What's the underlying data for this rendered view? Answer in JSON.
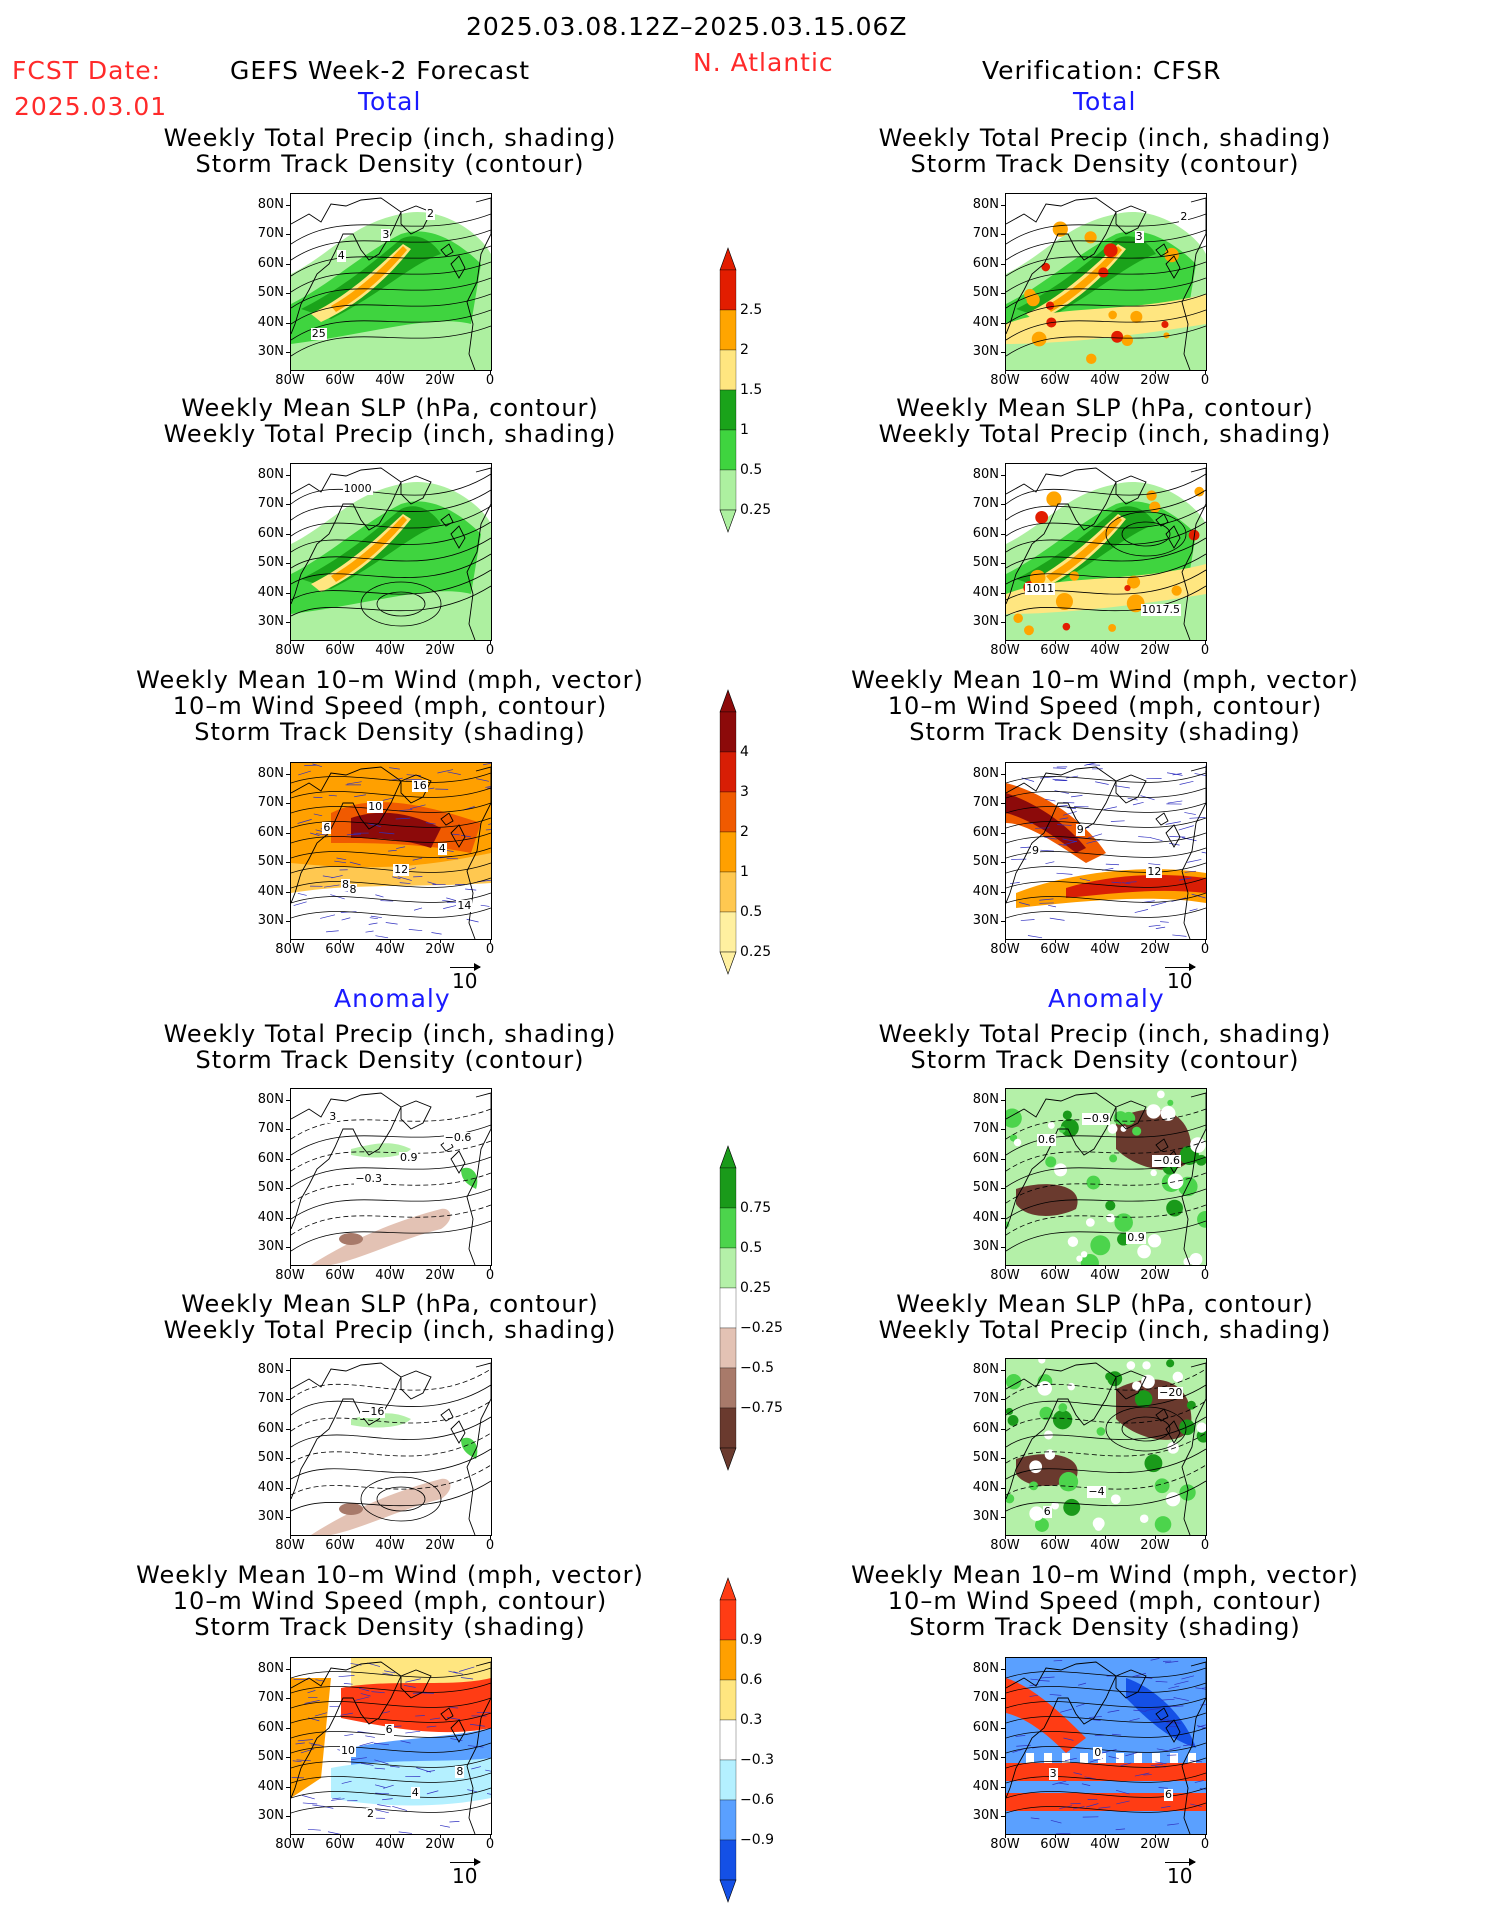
{
  "header": {
    "period": "2025.03.08.12Z–2025.03.15.06Z",
    "fcst_label": "FCST Date:",
    "fcst_date": "2025.03.01",
    "model": "GEFS Week-2 Forecast",
    "region": "N. Atlantic",
    "verification": "Verification: CFSR",
    "total_label": "Total",
    "anomaly_label": "Anomaly"
  },
  "titles": {
    "precip_storm": [
      "Weekly Total Precip (inch, shading)",
      "Storm Track Density (contour)"
    ],
    "slp_precip": [
      "Weekly Mean SLP (hPa, contour)",
      "Weekly Total Precip (inch, shading)"
    ],
    "wind": [
      "Weekly Mean 10–m Wind (mph, vector)",
      "10–m Wind Speed (mph, contour)",
      "Storm Track Density (shading)"
    ]
  },
  "axes": {
    "lat": [
      "80N",
      "70N",
      "60N",
      "50N",
      "40N",
      "30N"
    ],
    "lon": [
      "80W",
      "60W",
      "40W",
      "20W",
      "0"
    ]
  },
  "ref_vector_label": "10",
  "colorbars": {
    "precip_total": {
      "labels": [
        "2.5",
        "2",
        "1.5",
        "1",
        "0.5",
        "0.25"
      ],
      "colors": [
        "#e21d00",
        "#ffa500",
        "#ffe680",
        "#1aa31a",
        "#3fd43f",
        "#adf0a0"
      ]
    },
    "storm_total": {
      "labels": [
        "4",
        "3",
        "2",
        "1",
        "0.5",
        "0.25"
      ],
      "colors": [
        "#8c0a0a",
        "#d81e05",
        "#f05a00",
        "#ffa000",
        "#ffc850",
        "#fff0a0"
      ]
    },
    "precip_anom": {
      "labels": [
        "0.75",
        "0.5",
        "0.25",
        "−0.25",
        "−0.5",
        "−0.75"
      ],
      "colors": [
        "#1a9a1a",
        "#4cd44c",
        "#b4f0a8",
        "#ffffff",
        "#e3c2b4",
        "#a87a6a",
        "#6a3a2e"
      ]
    },
    "storm_anom": {
      "labels": [
        "0.9",
        "0.6",
        "0.3",
        "−0.3",
        "−0.6",
        "−0.9"
      ],
      "colors": [
        "#ff3c14",
        "#ffa000",
        "#ffe680",
        "#ffffff",
        "#b4f0ff",
        "#5aa0ff",
        "#1450e6"
      ]
    }
  },
  "panels": [
    {
      "id": "fc-total-precip",
      "labels": [
        "4",
        "3",
        "2",
        "25"
      ]
    },
    {
      "id": "vf-total-precip",
      "labels": [
        "3",
        "2"
      ]
    },
    {
      "id": "fc-total-slp",
      "labels": [
        "1000"
      ]
    },
    {
      "id": "vf-total-slp",
      "labels": [
        "1017.5",
        "1011"
      ]
    },
    {
      "id": "fc-total-wind",
      "labels": [
        "8",
        "12",
        "4",
        "6",
        "10",
        "16",
        "14",
        "8"
      ]
    },
    {
      "id": "vf-total-wind",
      "labels": [
        "12",
        "9",
        "9"
      ]
    },
    {
      "id": "fc-anom-precip",
      "labels": [
        "−0.3",
        "0.9",
        "−0.6",
        "3"
      ]
    },
    {
      "id": "vf-anom-precip",
      "labels": [
        "−0.6",
        "0.6",
        "−0.9",
        "0.9"
      ]
    },
    {
      "id": "fc-anom-slp",
      "labels": [
        "−16"
      ]
    },
    {
      "id": "vf-anom-slp",
      "labels": [
        "−20",
        "6",
        "−4"
      ]
    },
    {
      "id": "fc-anom-wind",
      "labels": [
        "2",
        "4",
        "8",
        "10",
        "6"
      ]
    },
    {
      "id": "vf-anom-wind",
      "labels": [
        "6",
        "3",
        "0"
      ]
    }
  ],
  "colors": {
    "red_text": "#ff2a2a",
    "blue_text": "#1a1aff"
  }
}
